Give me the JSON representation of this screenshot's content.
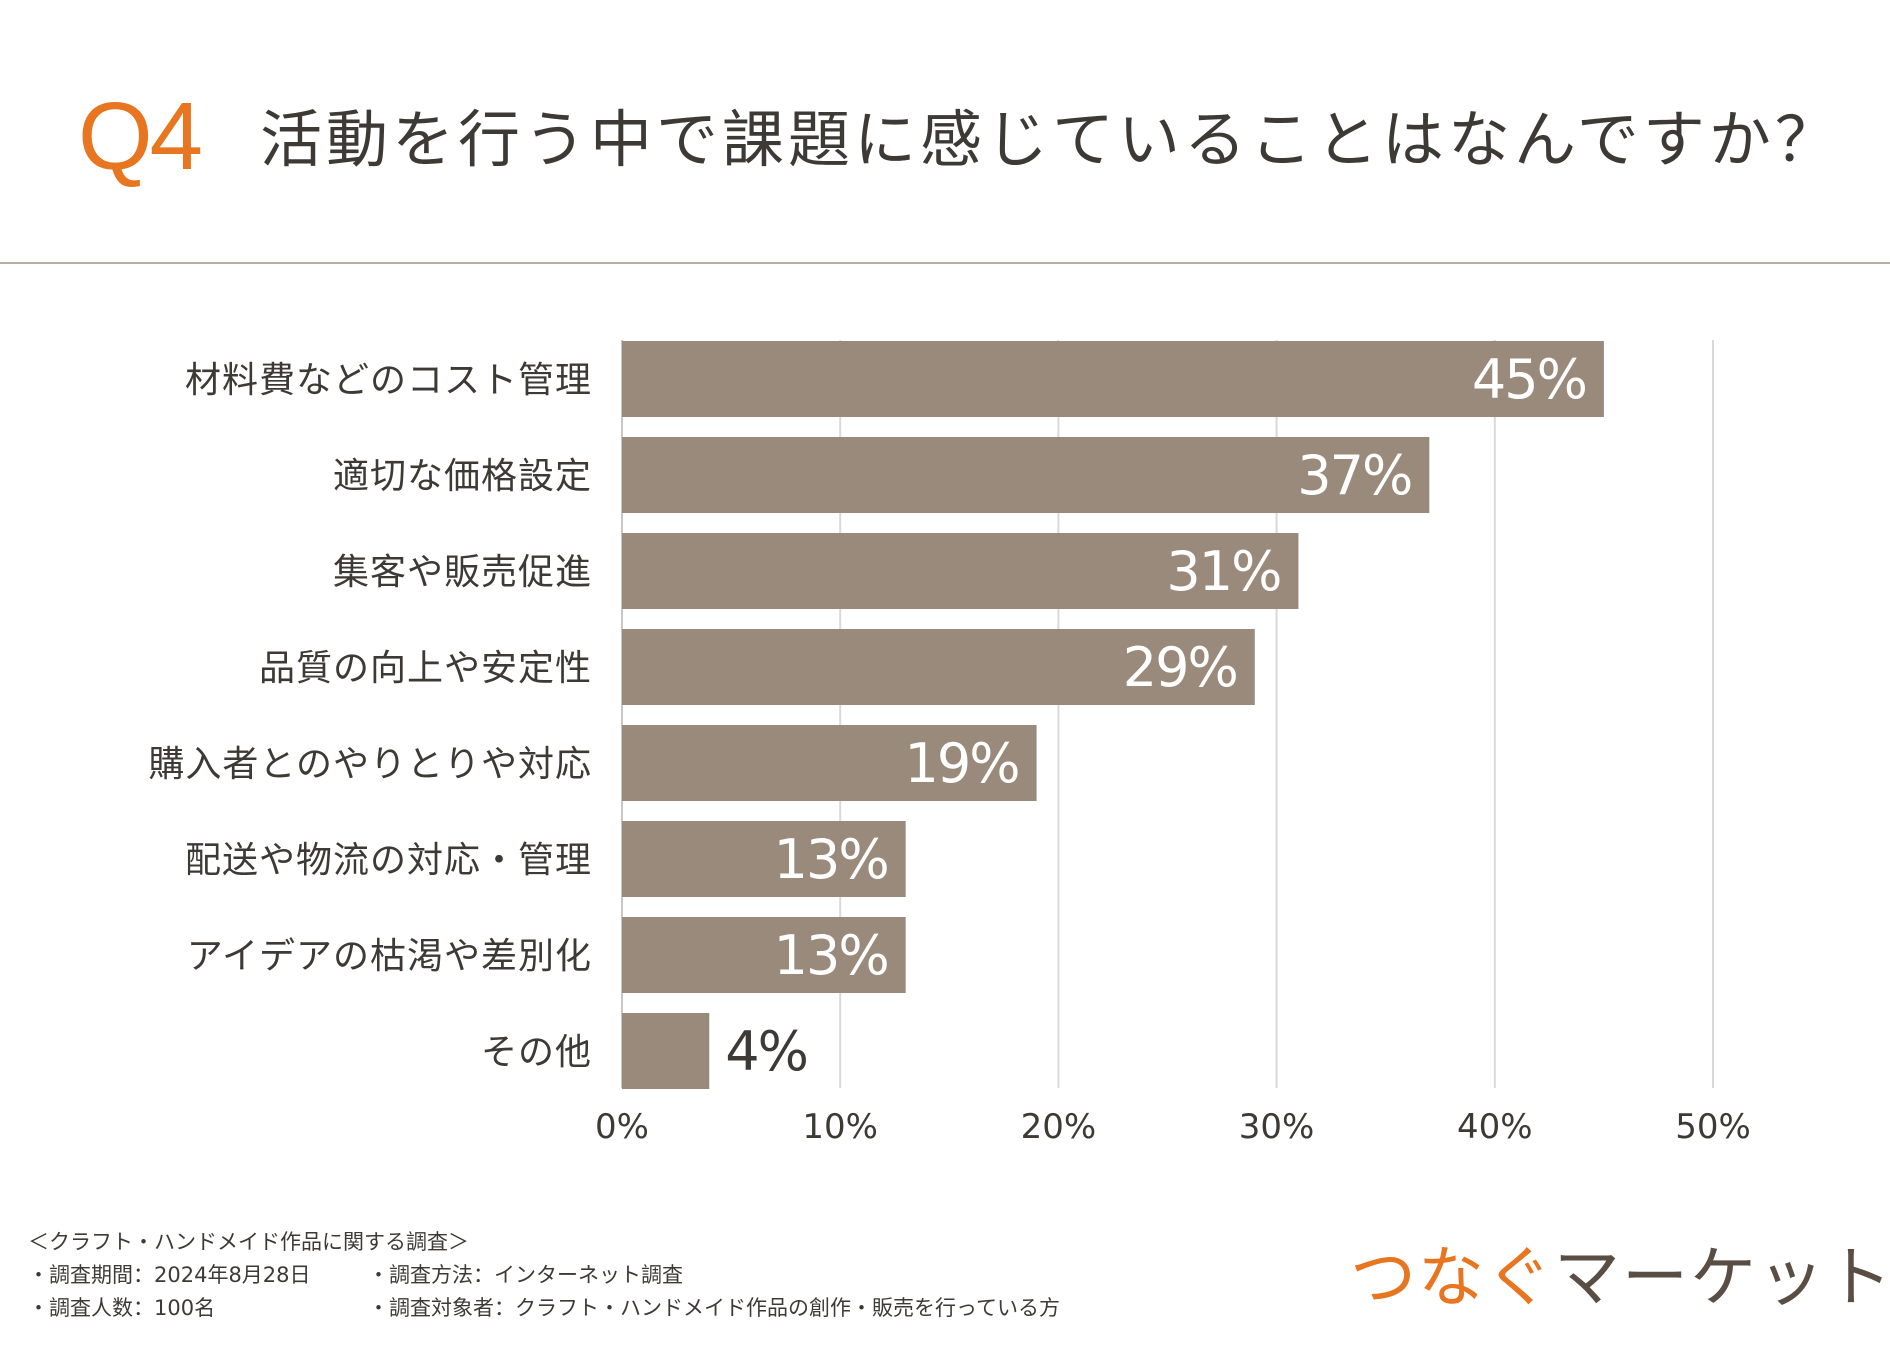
{
  "header": {
    "q_number": "Q4",
    "title": "活動を行う中で課題に感じていることはなんですか？"
  },
  "colors": {
    "accent": "#e8751f",
    "bar": "#9a8a7b",
    "text": "#3d3a36",
    "grid": "#d9d9d9",
    "brand_dark": "#5a4d43"
  },
  "chart_data": {
    "type": "bar",
    "orientation": "horizontal",
    "categories": [
      "材料費などのコスト管理",
      "適切な価格設定",
      "集客や販売促進",
      "品質の向上や安定性",
      "購入者とのやりとりや対応",
      "配送や物流の対応・管理",
      "アイデアの枯渇や差別化",
      "その他"
    ],
    "values": [
      45,
      37,
      31,
      29,
      19,
      13,
      13,
      4
    ],
    "value_labels": [
      "45%",
      "37%",
      "31%",
      "29%",
      "19%",
      "13%",
      "13%",
      "4%"
    ],
    "xlim": [
      0,
      50
    ],
    "xticks": [
      0,
      10,
      20,
      30,
      40,
      50
    ],
    "xtick_labels": [
      "0%",
      "10%",
      "20%",
      "30%",
      "40%",
      "50%"
    ],
    "grid": true,
    "title": "",
    "xlabel": "",
    "ylabel": ""
  },
  "footer": {
    "survey_title": "＜クラフト・ハンドメイド作品に関する調査＞",
    "period": "・調査期間：2024年8月28日",
    "method": "・調査方法：インターネット調査",
    "respondents": "・調査人数：100名",
    "target": "・調査対象者：クラフト・ハンドメイド作品の創作・販売を行っている方"
  },
  "brand": {
    "part1": "つなぐ",
    "part2": "マーケット"
  }
}
